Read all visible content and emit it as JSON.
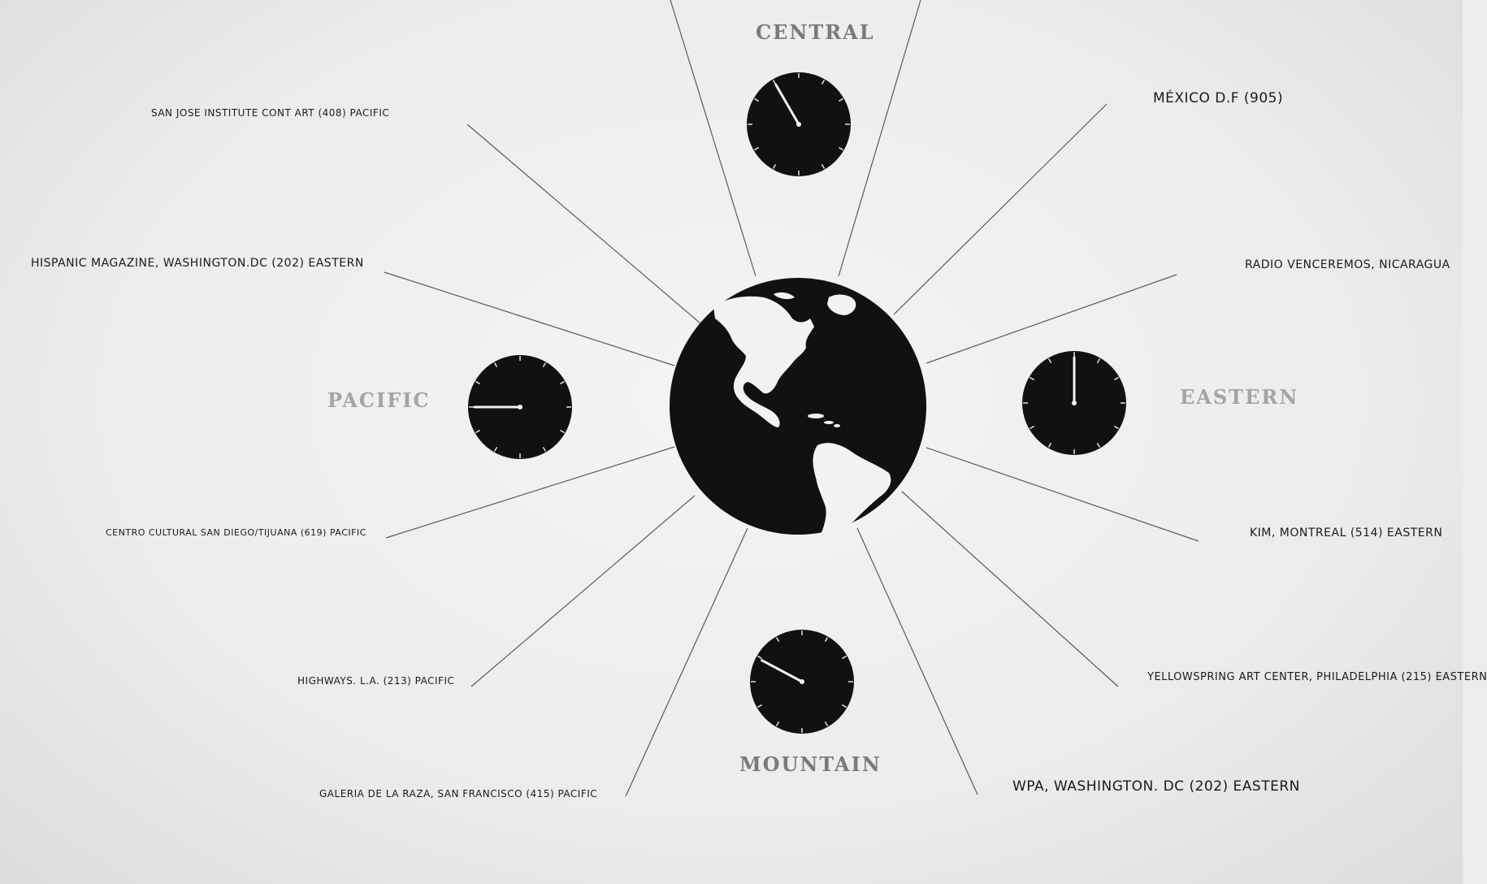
{
  "zones": {
    "central": "CENTRAL",
    "pacific": "PACIFIC",
    "eastern": "EASTERN",
    "mountain": "MOUNTAIN"
  },
  "stations": [
    {
      "id": "san-jose",
      "text": "SAN JOSE INSTITUTE CONT ART (408) PACIFIC"
    },
    {
      "id": "hispanic-magazine",
      "text": "HISPANIC MAGAZINE, WASHINGTON.DC (202) EASTERN"
    },
    {
      "id": "centro-cultural",
      "text": "CENTRO CULTURAL SAN DIEGO/TIJUANA (619) PACIFIC"
    },
    {
      "id": "highways",
      "text": "HIGHWAYS. L.A. (213) PACIFIC"
    },
    {
      "id": "galeria",
      "text": "GALERIA DE LA RAZA, SAN FRANCISCO (415) PACIFIC"
    },
    {
      "id": "mexico",
      "text": "MÉXICO D.F (905)"
    },
    {
      "id": "radio-venceremos",
      "text": "RADIO VENCEREMOS, NICARAGUA"
    },
    {
      "id": "kim-montreal",
      "text": "KIM, MONTREAL (514) EASTERN"
    },
    {
      "id": "yellowspring",
      "text": "YELLOWSPRING ART CENTER, PHILADELPHIA (215) EASTERN"
    },
    {
      "id": "wpa",
      "text": "WPA, WASHINGTON. DC (202) EASTERN"
    }
  ],
  "clocks": {
    "central": {
      "hour_hand_deg": -30
    },
    "pacific": {
      "hour_hand_deg": -90
    },
    "eastern": {
      "hour_hand_deg": 0
    },
    "mountain": {
      "hour_hand_deg": -62
    }
  },
  "icons": {
    "globe": "globe-americas-icon",
    "clock": "clock-icon"
  },
  "colors": {
    "background": "#ececea",
    "ink": "#111111",
    "line": "#555555"
  }
}
